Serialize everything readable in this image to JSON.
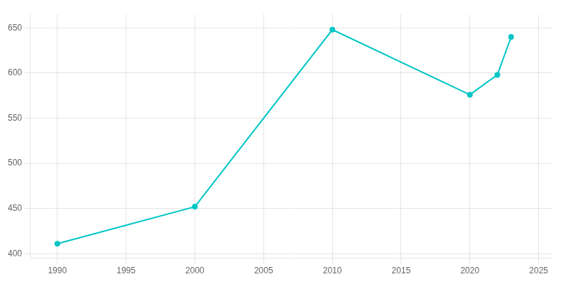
{
  "chart_data": {
    "type": "line",
    "x": [
      1990,
      2000,
      2010,
      2020,
      2022,
      2023
    ],
    "values": [
      411,
      452,
      648,
      576,
      598,
      640
    ],
    "color": "#00C5C5",
    "marker": "circle",
    "xlim": [
      1988,
      2026
    ],
    "xticks": [
      1990,
      1995,
      2000,
      2005,
      2010,
      2015,
      2020,
      2025
    ],
    "ylim": [
      395,
      665
    ],
    "yticks": [
      400,
      450,
      500,
      550,
      600,
      650
    ],
    "grid": true
  }
}
